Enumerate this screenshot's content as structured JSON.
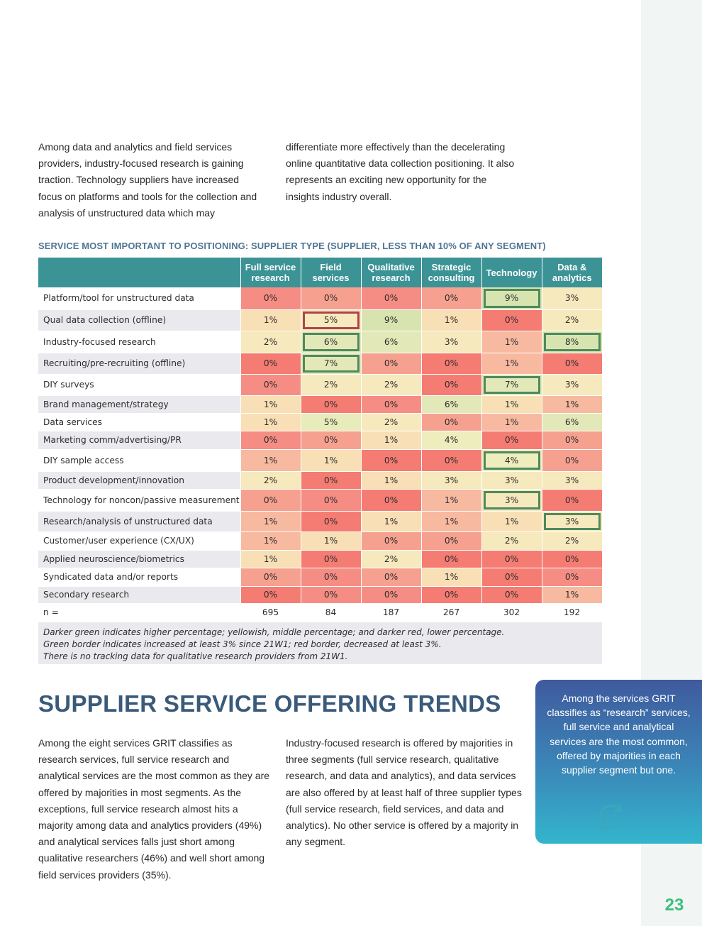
{
  "page": {
    "number": "23"
  },
  "intro": {
    "left": "Among data and analytics and field services providers, industry-focused research is gaining traction. Technology suppliers have increased focus on platforms and tools for the collection and analysis of unstructured data which may",
    "right": "differentiate more effectively than the decelerating online quantitative data collection positioning. It also represents an exciting new opportunity for the insights industry overall."
  },
  "table": {
    "title": "SERVICE MOST IMPORTANT TO POSITIONING: SUPPLIER TYPE (SUPPLIER, LESS THAN 10% OF ANY SEGMENT)",
    "columns": [
      [
        "Full service",
        "research"
      ],
      [
        "Field",
        "services"
      ],
      [
        "Qualitative",
        "research"
      ],
      [
        "Strategic",
        "consulting"
      ],
      [
        "Technology"
      ],
      [
        "Data &",
        "analytics"
      ]
    ],
    "rows": [
      {
        "label": "Platform/tool for unstructured data",
        "values": [
          "0%",
          "0%",
          "0%",
          "0%",
          "9%",
          "3%"
        ],
        "colors": [
          "#f58d84",
          "#f6a190",
          "#f58d84",
          "#f6a190",
          "#d7e4b0",
          "#f6e9bd"
        ],
        "borders": [
          "",
          "",
          "",
          "",
          "up",
          ""
        ]
      },
      {
        "label": "Qual data collection (offline)",
        "values": [
          "1%",
          "5%",
          "9%",
          "1%",
          "0%",
          "2%"
        ],
        "colors": [
          "#f8dfb5",
          "#f6e9bd",
          "#d7e4b0",
          "#f8dfb5",
          "#f47c73",
          "#f6e9bd"
        ],
        "borders": [
          "",
          "down",
          "",
          "",
          "",
          ""
        ]
      },
      {
        "label": "Industry-focused research",
        "values": [
          "2%",
          "6%",
          "6%",
          "3%",
          "1%",
          "8%"
        ],
        "colors": [
          "#f6e9bd",
          "#e2e8b7",
          "#e2e8b7",
          "#f6e9bd",
          "#f7b9a0",
          "#d7e4b0"
        ],
        "borders": [
          "",
          "up",
          "",
          "",
          "",
          "up"
        ]
      },
      {
        "label": "Recruiting/pre-recruiting (offline)",
        "values": [
          "0%",
          "7%",
          "0%",
          "0%",
          "1%",
          "0%"
        ],
        "colors": [
          "#f47c73",
          "#e2e8b7",
          "#f6a190",
          "#f47c73",
          "#f7b9a0",
          "#f47c73"
        ],
        "borders": [
          "",
          "up",
          "",
          "",
          "",
          ""
        ]
      },
      {
        "label": "DIY surveys",
        "values": [
          "0%",
          "2%",
          "2%",
          "0%",
          "7%",
          "3%"
        ],
        "colors": [
          "#f58d84",
          "#f6e9bd",
          "#f6e9bd",
          "#f47c73",
          "#e2e8b7",
          "#f6e9bd"
        ],
        "borders": [
          "",
          "",
          "",
          "",
          "up",
          ""
        ]
      },
      {
        "label": "Brand management/strategy",
        "values": [
          "1%",
          "0%",
          "0%",
          "6%",
          "1%",
          "1%"
        ],
        "colors": [
          "#f8dfb5",
          "#f47c73",
          "#f58d84",
          "#e2e8b7",
          "#f8dfb5",
          "#f7b9a0"
        ],
        "borders": [
          "",
          "",
          "",
          "",
          "",
          ""
        ]
      },
      {
        "label": "Data services",
        "values": [
          "1%",
          "5%",
          "2%",
          "0%",
          "1%",
          "6%"
        ],
        "colors": [
          "#f8dfb5",
          "#e8ebba",
          "#f6e9bd",
          "#f6a190",
          "#f7b9a0",
          "#e2e8b7"
        ],
        "borders": [
          "",
          "",
          "",
          "",
          "",
          ""
        ]
      },
      {
        "label": "Marketing comm/advertising/PR",
        "values": [
          "0%",
          "0%",
          "1%",
          "4%",
          "0%",
          "0%"
        ],
        "colors": [
          "#f58d84",
          "#f6a190",
          "#f8dfb5",
          "#eeedbd",
          "#f47c73",
          "#f6a190"
        ],
        "borders": [
          "",
          "",
          "",
          "",
          "",
          ""
        ]
      },
      {
        "label": "DIY sample access",
        "values": [
          "1%",
          "1%",
          "0%",
          "0%",
          "4%",
          "0%"
        ],
        "colors": [
          "#f7b9a0",
          "#f8dfb5",
          "#f47c73",
          "#f47c73",
          "#eeedbd",
          "#f6a190"
        ],
        "borders": [
          "",
          "",
          "",
          "",
          "up",
          ""
        ]
      },
      {
        "label": "Product development/innovation",
        "values": [
          "2%",
          "0%",
          "1%",
          "3%",
          "3%",
          "3%"
        ],
        "colors": [
          "#f6e9bd",
          "#f47c73",
          "#f8dfb5",
          "#f6e9bd",
          "#f6e9bd",
          "#f6e9bd"
        ],
        "borders": [
          "",
          "",
          "",
          "",
          "",
          ""
        ]
      },
      {
        "label": "Technology for noncon/passive measurement",
        "values": [
          "0%",
          "0%",
          "0%",
          "1%",
          "3%",
          "0%"
        ],
        "colors": [
          "#f6a190",
          "#f58d84",
          "#f47c73",
          "#f7b9a0",
          "#f6e9bd",
          "#f47c73"
        ],
        "borders": [
          "",
          "",
          "",
          "",
          "up",
          ""
        ]
      },
      {
        "label": "Research/analysis of unstructured data",
        "values": [
          "1%",
          "0%",
          "1%",
          "1%",
          "1%",
          "3%"
        ],
        "colors": [
          "#f7b9a0",
          "#f47c73",
          "#f8dfb5",
          "#f7b9a0",
          "#f8dfb5",
          "#f6e9bd"
        ],
        "borders": [
          "",
          "",
          "",
          "",
          "",
          "up"
        ]
      },
      {
        "label": "Customer/user experience (CX/UX)",
        "values": [
          "1%",
          "1%",
          "0%",
          "0%",
          "2%",
          "2%"
        ],
        "colors": [
          "#f7b9a0",
          "#f8dfb5",
          "#f6a190",
          "#f6a190",
          "#f6e9bd",
          "#f6e9bd"
        ],
        "borders": [
          "",
          "",
          "",
          "",
          "",
          ""
        ]
      },
      {
        "label": "Applied neuroscience/biometrics",
        "values": [
          "1%",
          "0%",
          "2%",
          "0%",
          "0%",
          "0%"
        ],
        "colors": [
          "#f8dfb5",
          "#f47c73",
          "#f6e9bd",
          "#f47c73",
          "#f47c73",
          "#f47c73"
        ],
        "borders": [
          "",
          "",
          "",
          "",
          "",
          ""
        ]
      },
      {
        "label": "Syndicated data and/or reports",
        "values": [
          "0%",
          "0%",
          "0%",
          "1%",
          "0%",
          "0%"
        ],
        "colors": [
          "#f6a190",
          "#f58d84",
          "#f6a190",
          "#f8dfb5",
          "#f47c73",
          "#f58d84"
        ],
        "borders": [
          "",
          "",
          "",
          "",
          "",
          ""
        ]
      },
      {
        "label": "Secondary research",
        "values": [
          "0%",
          "0%",
          "0%",
          "0%",
          "0%",
          "1%"
        ],
        "colors": [
          "#f47c73",
          "#f58d84",
          "#f58d84",
          "#f47c73",
          "#f47c73",
          "#f7b9a0"
        ],
        "borders": [
          "",
          "",
          "",
          "",
          "",
          ""
        ]
      }
    ],
    "n_row": {
      "label": "n =",
      "values": [
        "695",
        "84",
        "187",
        "267",
        "302",
        "192"
      ]
    },
    "notes": [
      "Darker green indicates higher percentage; yellowish, middle percentage; and darker red, lower percentage.",
      "Green border indicates increased at least 3% since 21W1; red border, decreased at least 3%.",
      "There is no tracking data for qualitative research providers from 21W1."
    ]
  },
  "section": {
    "heading": "SUPPLIER SERVICE OFFERING TRENDS",
    "left": "Among the eight services GRIT classifies as research services, full service research and analytical services are the most common as they are offered by majorities in most segments. As the exceptions, full service research almost hits a majority among data and analytics providers (49%) and analytical services falls just short among qualitative researchers (46%) and well short among field services providers (35%).",
    "right": "Industry-focused research is offered by majorities in three segments (full service research, qualitative research, and data and analytics), and data services are also offered by at least half of three supplier types (full service research, field services, and data and analytics). No other service is offered by a majority in any segment."
  },
  "callout": {
    "text": "Among the services GRIT classifies as “research” services, full service and analytical services are the most common, offered by majorities in each supplier segment but one.",
    "icon": "refresh-chat-icon"
  },
  "colors": {
    "header_teal": "#3c9396",
    "heading_blue": "#3a5a7a",
    "title_blue": "#4e7592",
    "page_number_green": "#3dbe7e",
    "border_up": "#4e8a5c",
    "border_down": "#b2424a"
  }
}
